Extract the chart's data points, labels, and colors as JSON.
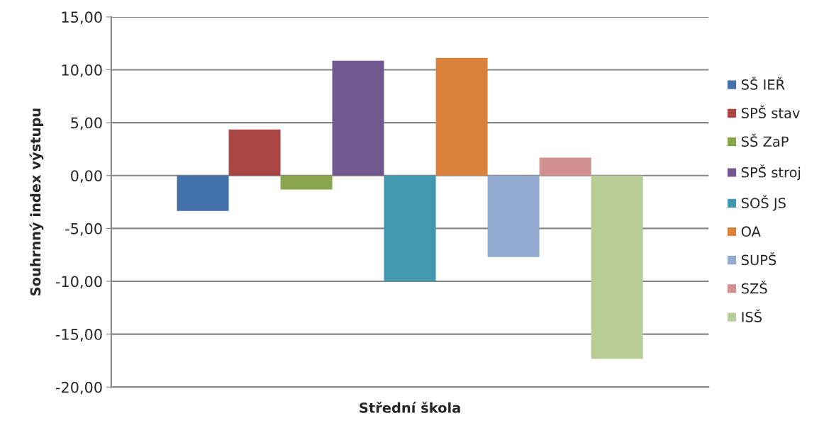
{
  "chart_data": {
    "type": "bar",
    "xlabel": "Střední škola",
    "ylabel": "Souhrnný index výstupu",
    "categories": [
      null
    ],
    "series": [
      {
        "name": "SŠ IEŘ",
        "color": "#4471a8",
        "values": [
          -3.35
        ]
      },
      {
        "name": "SPŠ stav",
        "color": "#a94644",
        "values": [
          4.36
        ]
      },
      {
        "name": "SŠ ZaP",
        "color": "#89a54d",
        "values": [
          -1.32
        ]
      },
      {
        "name": "SPŠ stroj",
        "color": "#71588f",
        "values": [
          10.86
        ]
      },
      {
        "name": "SOŠ JS",
        "color": "#4298af",
        "values": [
          -10.0
        ]
      },
      {
        "name": "OA",
        "color": "#db833c",
        "values": [
          11.13
        ]
      },
      {
        "name": "SUPŠ",
        "color": "#94a9d0",
        "values": [
          -7.71
        ]
      },
      {
        "name": "SZŠ",
        "color": "#d29190",
        "values": [
          1.69
        ]
      },
      {
        "name": "ISŠ",
        "color": "#b8cd95",
        "values": [
          -17.33
        ]
      }
    ],
    "ylim": [
      -20,
      15
    ],
    "yticks": [
      {
        "value": -20,
        "label": "-20,00"
      },
      {
        "value": -15,
        "label": "-15,00"
      },
      {
        "value": -10,
        "label": "-10,00"
      },
      {
        "value": -5,
        "label": "-5,00"
      },
      {
        "value": 0,
        "label": "0,00"
      },
      {
        "value": 5,
        "label": "5,00"
      },
      {
        "value": 10,
        "label": "10,00"
      },
      {
        "value": 15,
        "label": "15,00"
      }
    ],
    "grid": "y",
    "legend": "right"
  }
}
